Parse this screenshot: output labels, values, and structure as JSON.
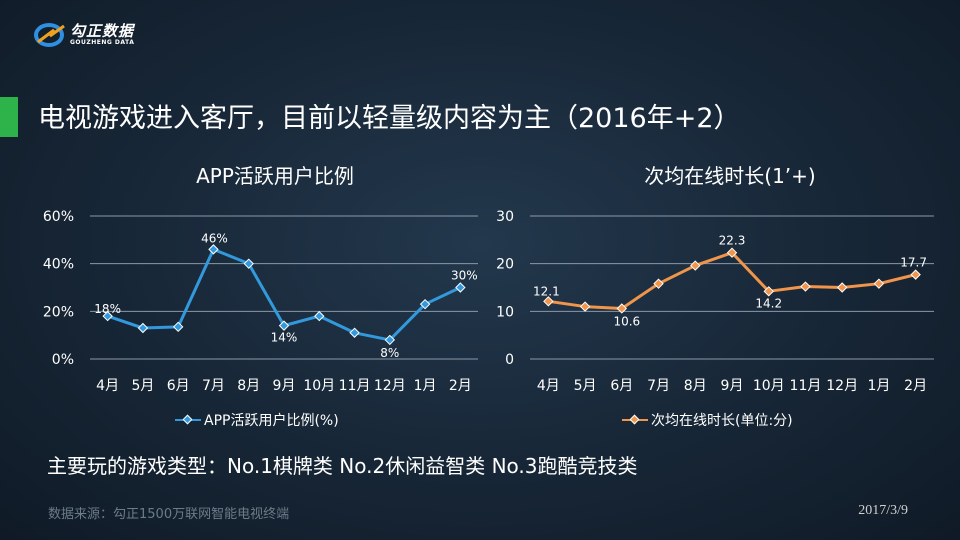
{
  "logo": {
    "cn": "勾正数据",
    "en": "GOUZHENG DATA"
  },
  "title": "电视游戏进入客厅，目前以轻量级内容为主（2016年+2）",
  "summary": "主要玩的游戏类型：No.1棋牌类 No.2休闲益智类 No.3跑酷竞技类",
  "source": "数据来源：勾正1500万联网智能电视终端",
  "date": "2017/3/9",
  "colors": {
    "accent": "#2db34a",
    "blue": "#3399dd",
    "orange": "#f0954a"
  },
  "chart_data": [
    {
      "type": "line",
      "title": "APP活跃用户比例",
      "categories": [
        "4月",
        "5月",
        "6月",
        "7月",
        "8月",
        "9月",
        "10月",
        "11月",
        "12月",
        "1月",
        "2月"
      ],
      "series": [
        {
          "name": "APP活跃用户比例(%)",
          "values": [
            18,
            13,
            13.5,
            46,
            40,
            14,
            18,
            11,
            8,
            23,
            30
          ]
        }
      ],
      "data_labels": [
        {
          "index": 0,
          "text": "18%"
        },
        {
          "index": 3,
          "text": "46%"
        },
        {
          "index": 5,
          "text": "14%"
        },
        {
          "index": 8,
          "text": "8%"
        },
        {
          "index": 10,
          "text": "30%"
        }
      ],
      "ylim": [
        0,
        60
      ],
      "yticks": [
        0,
        20,
        40,
        60
      ],
      "ytick_labels": [
        "0%",
        "20%",
        "40%",
        "60%"
      ],
      "grid": true,
      "legend": "bottom",
      "color": "#3399dd"
    },
    {
      "type": "line",
      "title": "次均在线时长(1’+)",
      "categories": [
        "4月",
        "5月",
        "6月",
        "7月",
        "8月",
        "9月",
        "10月",
        "11月",
        "12月",
        "1月",
        "2月"
      ],
      "series": [
        {
          "name": "次均在线时长(单位:分)",
          "values": [
            12.1,
            11,
            10.6,
            15.8,
            19.6,
            22.3,
            14.2,
            15.2,
            15,
            15.8,
            17.7
          ]
        }
      ],
      "data_labels": [
        {
          "index": 0,
          "text": "12.1"
        },
        {
          "index": 2,
          "text": "10.6"
        },
        {
          "index": 5,
          "text": "22.3"
        },
        {
          "index": 6,
          "text": "14.2"
        },
        {
          "index": 10,
          "text": "17.7"
        }
      ],
      "ylim": [
        0,
        30
      ],
      "yticks": [
        0,
        10,
        20,
        30
      ],
      "ytick_labels": [
        "0",
        "10",
        "20",
        "30"
      ],
      "grid": true,
      "legend": "bottom",
      "color": "#f0954a"
    }
  ]
}
